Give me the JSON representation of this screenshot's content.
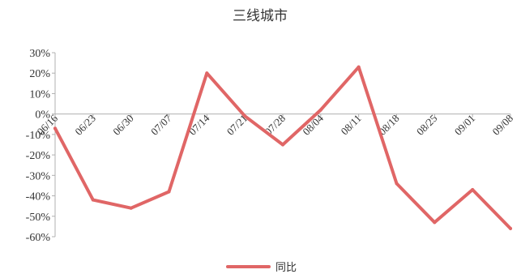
{
  "chart_data": {
    "type": "line",
    "title": "三线城市",
    "xlabel": "",
    "ylabel": "",
    "categories": [
      "06/16",
      "06/23",
      "06/30",
      "07/07",
      "07/14",
      "07/21",
      "07/28",
      "08/04",
      "08/11",
      "08/18",
      "08/25",
      "09/01",
      "09/08"
    ],
    "series": [
      {
        "name": "同比",
        "values": [
          -7,
          -42,
          -46,
          -38,
          20,
          -1,
          -15,
          2,
          23,
          -34,
          -53,
          -37,
          -56
        ]
      }
    ],
    "ylim": [
      -60,
      30
    ],
    "yticks": [
      30,
      20,
      10,
      0,
      -10,
      -20,
      -30,
      -40,
      -50,
      -60
    ],
    "ytick_labels": [
      "30%",
      "20%",
      "10%",
      "0%",
      "-10%",
      "-20%",
      "-30%",
      "-40%",
      "-50%",
      "-60%"
    ],
    "grid": false,
    "legend": "bottom-center",
    "colors": {
      "series": "#e06666",
      "axis": "#b0b0b0"
    }
  }
}
